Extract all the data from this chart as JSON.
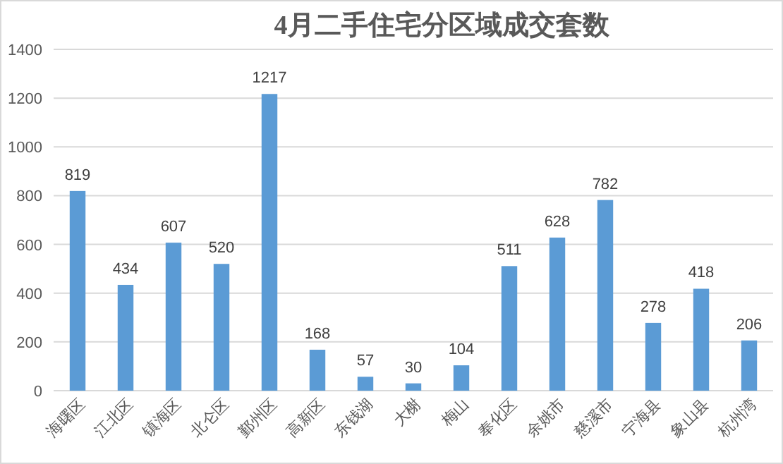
{
  "chart_data": {
    "type": "bar",
    "title": "4月二手住宅分区域成交套数",
    "categories": [
      "海曙区",
      "江北区",
      "镇海区",
      "北仑区",
      "鄞州区",
      "高新区",
      "东钱湖",
      "大榭",
      "梅山",
      "奉化区",
      "余姚市",
      "慈溪市",
      "宁海县",
      "象山县",
      "杭州湾"
    ],
    "values": [
      819,
      434,
      607,
      520,
      1217,
      168,
      57,
      30,
      104,
      511,
      628,
      782,
      278,
      418,
      206
    ],
    "color": "#5b9bd5",
    "ylim": [
      0,
      1400
    ],
    "yticks": [
      0,
      200,
      400,
      600,
      800,
      1000,
      1200,
      1400
    ],
    "grid": "y",
    "data_labels": true
  }
}
